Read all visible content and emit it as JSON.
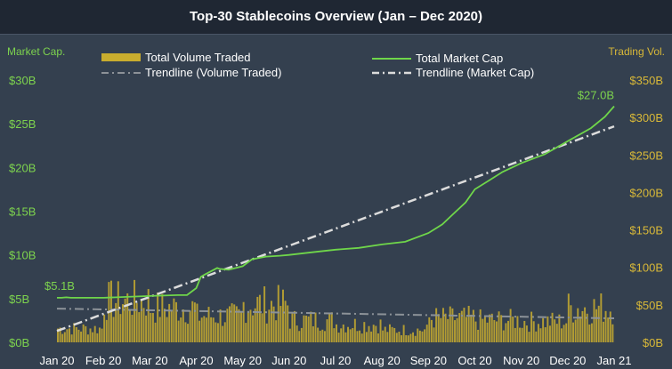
{
  "chart_data": {
    "type": "bar",
    "title": "Top-30 Stablecoins Overview (Jan – Dec 2020)",
    "ylabel_left": "Market Cap.",
    "ylabel_right": "Trading Vol.",
    "x_ticks": [
      "Jan 20",
      "Feb 20",
      "Mar 20",
      "Apr 20",
      "May 20",
      "Jun 20",
      "Jul 20",
      "Aug 20",
      "Sep 20",
      "Oct 20",
      "Nov 20",
      "Dec 20",
      "Jan 21"
    ],
    "left_axis": {
      "min": 0,
      "max": 30,
      "ticks": [
        "$0B",
        "$5B",
        "$10B",
        "$15B",
        "$20B",
        "$25B",
        "$30B"
      ]
    },
    "right_axis": {
      "min": 0,
      "max": 350,
      "ticks": [
        "$0B",
        "$50B",
        "$100B",
        "$150B",
        "$200B",
        "$250B",
        "$300B",
        "$350B"
      ]
    },
    "legend": {
      "volume": "Total Volume Traded",
      "volume_trend": "Trendline (Volume Traded)",
      "mcap": "Total Market Cap",
      "mcap_trend": "Trendline (Market Cap)"
    },
    "annotations": {
      "start": "$5.1B",
      "end": "$27.0B"
    },
    "market_cap": {
      "x": [
        0,
        0.1,
        0.2,
        0.3,
        0.8,
        1,
        1.5,
        2,
        2.6,
        2.8,
        3.0,
        3.1,
        3.2,
        3.45,
        3.5,
        3.7,
        4.0,
        4.2,
        4.5,
        4.8,
        5.0,
        5.5,
        6.0,
        6.5,
        7.0,
        7.5,
        8.0,
        8.3,
        8.5,
        8.8,
        9.0,
        9.3,
        9.6,
        10.0,
        10.5,
        11.0,
        11.5,
        11.8,
        12.0
      ],
      "y": [
        5.1,
        5.1,
        5.15,
        5.1,
        5.1,
        5.1,
        5.2,
        5.3,
        5.4,
        5.4,
        6.2,
        7.5,
        7.8,
        8.5,
        8.4,
        8.3,
        8.7,
        9.5,
        9.8,
        9.9,
        10.0,
        10.3,
        10.6,
        10.8,
        11.2,
        11.5,
        12.5,
        13.5,
        14.5,
        16.0,
        17.5,
        18.5,
        19.5,
        20.5,
        21.5,
        23.0,
        24.5,
        25.8,
        27.0
      ]
    },
    "market_cap_trend": {
      "x": [
        0,
        12
      ],
      "y": [
        1.3,
        24.7
      ]
    },
    "volume_monthly": {
      "x": [
        "Jan 20",
        "Feb 20",
        "Mar 20",
        "Apr 20",
        "May 20",
        "Jun 20",
        "Jul 20",
        "Aug 20",
        "Sep 20",
        "Oct 20",
        "Nov 20",
        "Dec 20"
      ],
      "values": [
        20,
        60,
        50,
        38,
        55,
        32,
        26,
        18,
        35,
        32,
        30,
        50
      ]
    },
    "volume_trend": {
      "x": [
        0,
        12
      ],
      "y": [
        45,
        32
      ]
    },
    "colors": {
      "background": "#34404f",
      "bar": "#c9ad2e",
      "market_cap": "#6fd64a",
      "trend_volume": "#8c9298",
      "trend_mcap": "#dcdcdc",
      "left_axis": "#7dd34e",
      "right_axis": "#d8b838",
      "x_axis": "#ffffff"
    }
  }
}
